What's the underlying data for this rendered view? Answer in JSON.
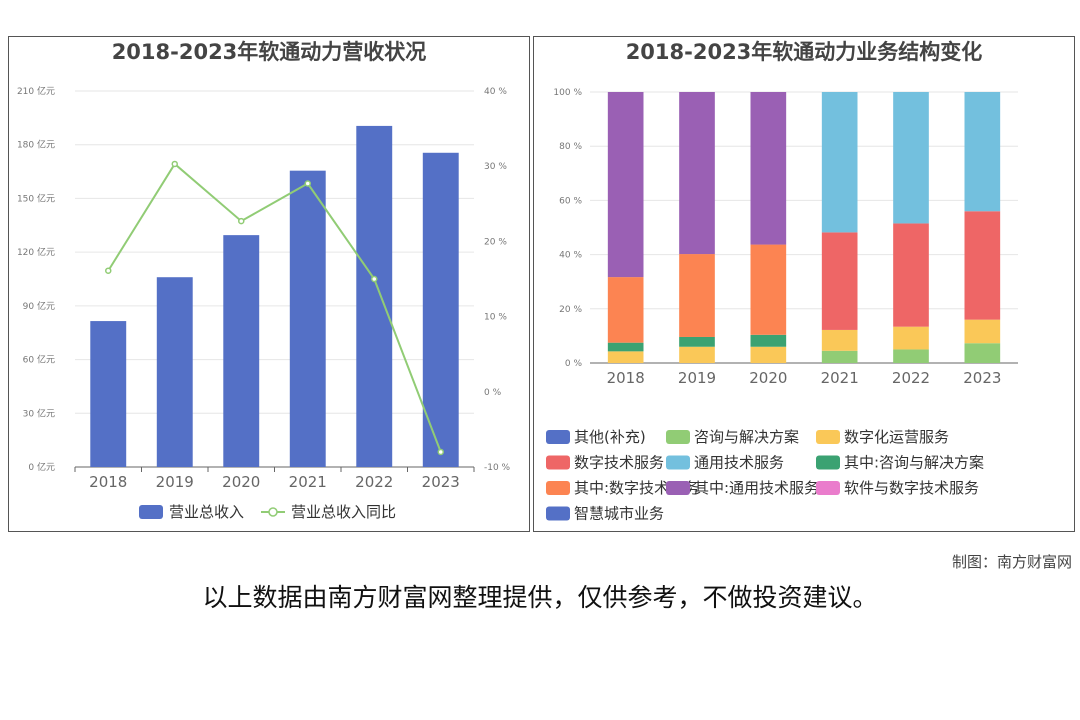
{
  "chart_data": [
    {
      "type": "bar",
      "title": "2018-2023年软通动力营收状况",
      "categories": [
        "2018",
        "2019",
        "2020",
        "2021",
        "2022",
        "2023"
      ],
      "y_left": {
        "ylim": [
          0,
          210
        ],
        "ticks": [
          0,
          30,
          60,
          90,
          120,
          150,
          180,
          210
        ],
        "tick_labels": [
          "0 亿元",
          "30 亿元",
          "60 亿元",
          "90 亿元",
          "120 亿元",
          "150 亿元",
          "180 亿元",
          "210 亿元"
        ]
      },
      "y_right": {
        "ylim": [
          -10,
          40
        ],
        "ticks": [
          -10,
          0,
          10,
          20,
          30,
          40
        ],
        "tick_labels": [
          "-10 %",
          "0 %",
          "10 %",
          "20 %",
          "30 %",
          "40 %"
        ]
      },
      "series": [
        {
          "name": "营业总收入",
          "type": "bar",
          "axis": "left",
          "color": "#5470c6",
          "values": [
            81.5,
            106,
            129.5,
            165.5,
            190.5,
            175.5
          ]
        },
        {
          "name": "营业总收入同比",
          "type": "line",
          "axis": "right",
          "color": "#91cc75",
          "values": [
            16.1,
            30.3,
            22.7,
            27.7,
            15.0,
            -8.0
          ]
        }
      ],
      "legend_position": "bottom"
    },
    {
      "type": "bar",
      "stacked": true,
      "title": "2018-2023年软通动力业务结构变化",
      "categories": [
        "2018",
        "2019",
        "2020",
        "2021",
        "2022",
        "2023"
      ],
      "ylim": [
        0,
        100
      ],
      "y_ticks": [
        0,
        20,
        40,
        60,
        80,
        100
      ],
      "y_tick_labels": [
        "0 %",
        "20 %",
        "40 %",
        "60 %",
        "80 %",
        "100 %"
      ],
      "series": [
        {
          "name": "其他(补充)",
          "color": "#5470c6",
          "values": [
            0,
            0,
            0,
            0,
            0,
            0
          ]
        },
        {
          "name": "咨询与解决方案",
          "color": "#91cc75",
          "values": [
            0,
            0,
            0,
            4.5,
            5,
            7.3
          ]
        },
        {
          "name": "数字化运营服务",
          "color": "#fac858",
          "values": [
            4.3,
            6,
            6,
            7.7,
            8.4,
            8.7
          ]
        },
        {
          "name": "数字技术服务",
          "color": "#ee6666",
          "values": [
            0,
            0,
            0,
            36,
            38.1,
            40
          ]
        },
        {
          "name": "通用技术服务",
          "color": "#73c0de",
          "values": [
            0,
            0,
            0,
            51.8,
            48.5,
            44
          ]
        },
        {
          "name": "其中:咨询与解决方案",
          "color": "#3ba272",
          "values": [
            3.2,
            3.6,
            4.4,
            0,
            0,
            0
          ]
        },
        {
          "name": "其中:数字技术服务",
          "color": "#fc8452",
          "values": [
            24.2,
            30.6,
            33.3,
            0,
            0,
            0
          ]
        },
        {
          "name": "其中:通用技术服务",
          "color": "#9a60b4",
          "values": [
            68.3,
            59.8,
            56.3,
            0,
            0,
            0
          ]
        },
        {
          "name": "软件与数字技术服务",
          "color": "#ea7ccc",
          "values": [
            0,
            0,
            0,
            0,
            0,
            0
          ]
        },
        {
          "name": "智慧城市业务",
          "color": "#5470c6",
          "values": [
            0,
            0,
            0,
            0,
            0,
            0
          ]
        }
      ],
      "legend_position": "bottom"
    }
  ],
  "footer": {
    "credit": "制图：南方财富网",
    "disclaimer": "以上数据由南方财富网整理提供，仅供参考，不做投资建议。"
  }
}
